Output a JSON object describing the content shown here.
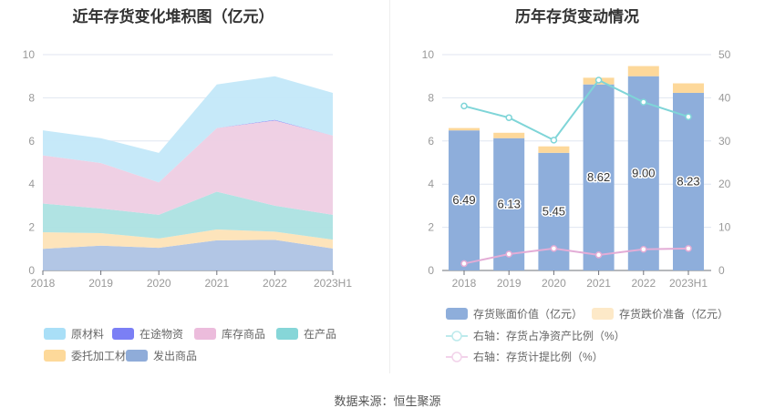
{
  "chart_data": [
    {
      "type": "area",
      "title": "近年存货变化堆积图（亿元）",
      "categories": [
        "2018",
        "2019",
        "2020",
        "2021",
        "2022",
        "2023H1"
      ],
      "ylim": [
        0,
        10
      ],
      "yticks": [
        0,
        2,
        4,
        6,
        8,
        10
      ],
      "stacked": true,
      "grid": true,
      "legend": "bottom",
      "series": [
        {
          "name": "发出商品",
          "color": "#aec3e4",
          "values": [
            1.0,
            1.15,
            1.05,
            1.4,
            1.42,
            1.02
          ]
        },
        {
          "name": "委托加工材料",
          "color": "#fde3b7",
          "values": [
            0.77,
            0.58,
            0.43,
            0.5,
            0.38,
            0.41
          ]
        },
        {
          "name": "在产品",
          "color": "#ace2e2",
          "values": [
            1.33,
            1.14,
            1.1,
            1.75,
            1.2,
            1.15
          ]
        },
        {
          "name": "库存商品",
          "color": "#eecde3",
          "values": [
            2.23,
            2.11,
            1.5,
            2.95,
            3.95,
            3.67
          ]
        },
        {
          "name": "在途物资",
          "color": "#7b7ff5",
          "values": [
            0,
            0,
            0,
            0,
            0.03,
            0
          ]
        },
        {
          "name": "原材料",
          "color": "#c3e8f9",
          "values": [
            1.16,
            1.15,
            1.37,
            2.02,
            2.02,
            1.98
          ]
        }
      ],
      "legend_order": [
        "原材料",
        "在途物资",
        "库存商品",
        "在产品",
        "委托加工材料",
        "发出商品"
      ],
      "legend_colors": [
        "#a9dff7",
        "#7b7ff5",
        "#ecbcdc",
        "#86d6d8",
        "#fdd99a",
        "#8facd9"
      ]
    },
    {
      "type": "bar",
      "title": "历年存货变动情况",
      "categories": [
        "2018",
        "2019",
        "2020",
        "2021",
        "2022",
        "2023H1"
      ],
      "ylim": [
        0,
        10
      ],
      "yticks": [
        0,
        2,
        4,
        6,
        8,
        10
      ],
      "y2lim": [
        0,
        50
      ],
      "y2ticks": [
        0,
        10,
        20,
        30,
        40,
        50
      ],
      "grid": true,
      "legend": "bottom",
      "series": [
        {
          "name": "存货账面价值（亿元）",
          "color": "#8eaedb",
          "values": [
            6.49,
            6.13,
            5.45,
            8.62,
            9.0,
            8.23
          ],
          "labels": [
            "6.49",
            "6.13",
            "5.45",
            "8.62",
            "9.00",
            "8.23"
          ]
        },
        {
          "name": "存货跌价准备（亿元）",
          "color": "#fdd89a",
          "values": [
            0.11,
            0.25,
            0.3,
            0.31,
            0.47,
            0.44
          ]
        },
        {
          "name": "右轴：存货占净资产比例（%）",
          "type": "line",
          "axis": "right",
          "color": "#7fd5d8",
          "values": [
            38.1,
            35.4,
            30.2,
            44.1,
            39.0,
            35.6
          ]
        },
        {
          "name": "右轴：存货计提比例（%）",
          "type": "line",
          "axis": "right",
          "color": "#e3acd6",
          "values": [
            1.6,
            3.8,
            5.1,
            3.6,
            4.9,
            5.1
          ]
        }
      ]
    }
  ],
  "source": "数据来源：恒生聚源"
}
